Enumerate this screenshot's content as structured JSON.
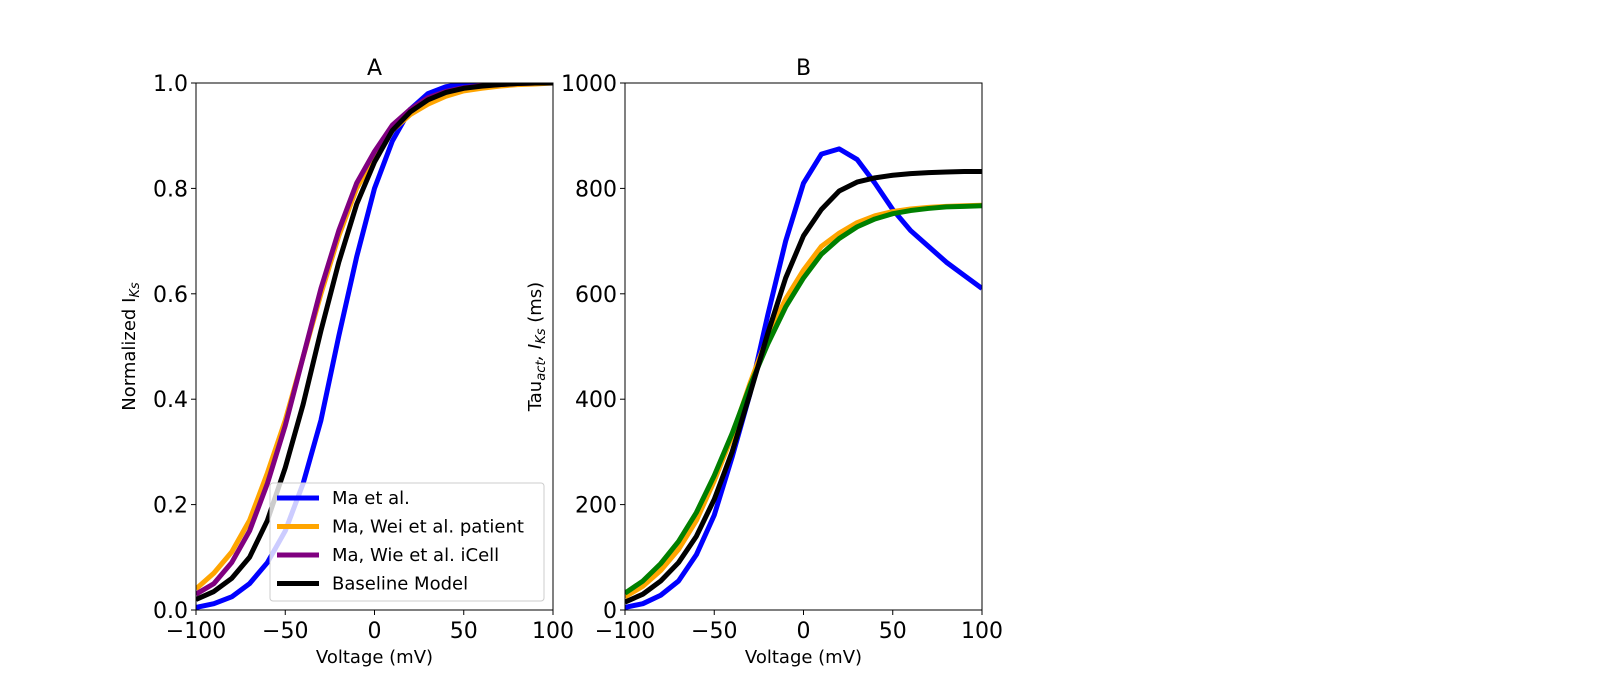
{
  "chart_data": [
    {
      "type": "line",
      "title": "A",
      "xlabel": "Voltage (mV)",
      "ylabel_main": "Normalized I",
      "ylabel_sub": "Ks",
      "xlim": [
        -100,
        100
      ],
      "ylim": [
        0,
        1
      ],
      "xticks": [
        -100,
        -50,
        0,
        50,
        100
      ],
      "xtick_labels": [
        "−100",
        "−50",
        "0",
        "50",
        "100"
      ],
      "yticks": [
        0,
        0.2,
        0.4,
        0.6,
        0.8,
        1.0
      ],
      "ytick_labels": [
        "0.0",
        "0.2",
        "0.4",
        "0.6",
        "0.8",
        "1.0"
      ],
      "grid": false,
      "legend": {
        "placement": "lower-right"
      },
      "x": [
        -100,
        -90,
        -80,
        -70,
        -60,
        -50,
        -40,
        -30,
        -20,
        -10,
        0,
        10,
        20,
        30,
        40,
        50,
        60,
        70,
        80,
        90,
        100
      ],
      "series": [
        {
          "name": "Ma et al.",
          "color": "#0000ff",
          "values": [
            0.005,
            0.012,
            0.025,
            0.05,
            0.09,
            0.15,
            0.24,
            0.36,
            0.52,
            0.67,
            0.8,
            0.89,
            0.95,
            0.98,
            0.993,
            0.998,
            1.0,
            1.0,
            1.0,
            1.0,
            1.0
          ]
        },
        {
          "name": "Ma, Wei et al. patient",
          "color": "#ffa500",
          "values": [
            0.04,
            0.07,
            0.11,
            0.17,
            0.26,
            0.36,
            0.48,
            0.6,
            0.71,
            0.8,
            0.86,
            0.91,
            0.94,
            0.96,
            0.975,
            0.985,
            0.99,
            0.994,
            0.997,
            0.998,
            1.0
          ]
        },
        {
          "name": "Ma, Wie et al. iCell",
          "color": "#800080",
          "values": [
            0.03,
            0.05,
            0.09,
            0.15,
            0.24,
            0.35,
            0.48,
            0.61,
            0.72,
            0.81,
            0.87,
            0.92,
            0.95,
            0.972,
            0.984,
            0.991,
            0.995,
            0.997,
            0.999,
            1.0,
            1.0
          ]
        },
        {
          "name": "Baseline Model",
          "color": "#000000",
          "values": [
            0.02,
            0.035,
            0.06,
            0.1,
            0.17,
            0.27,
            0.39,
            0.53,
            0.66,
            0.77,
            0.85,
            0.91,
            0.945,
            0.968,
            0.982,
            0.99,
            0.994,
            0.997,
            0.999,
            1.0,
            1.0
          ]
        }
      ]
    },
    {
      "type": "line",
      "title": "B",
      "xlabel": "Voltage (mV)",
      "ylabel_main": "Tau",
      "ylabel_sub": "act",
      "ylabel_mid": ", I",
      "ylabel_sub2": "Ks",
      "ylabel_end": " (ms)",
      "xlim": [
        -100,
        100
      ],
      "ylim": [
        0,
        1000
      ],
      "xticks": [
        -100,
        -50,
        0,
        50,
        100
      ],
      "xtick_labels": [
        "−100",
        "−50",
        "0",
        "50",
        "100"
      ],
      "yticks": [
        0,
        200,
        400,
        600,
        800,
        1000
      ],
      "ytick_labels": [
        "0",
        "200",
        "400",
        "600",
        "800",
        "1000"
      ],
      "grid": false,
      "x": [
        -100,
        -90,
        -80,
        -70,
        -60,
        -50,
        -40,
        -30,
        -20,
        -10,
        0,
        10,
        20,
        30,
        40,
        50,
        60,
        70,
        80,
        90,
        100
      ],
      "series": [
        {
          "color": "#0000ff",
          "values": [
            5,
            12,
            28,
            55,
            105,
            180,
            290,
            410,
            560,
            700,
            810,
            865,
            875,
            855,
            810,
            760,
            720,
            690,
            660,
            635,
            610
          ]
        },
        {
          "color": "#ffa500",
          "values": [
            25,
            45,
            75,
            115,
            170,
            245,
            330,
            430,
            520,
            590,
            645,
            690,
            715,
            735,
            748,
            756,
            761,
            764,
            766,
            767,
            768
          ]
        },
        {
          "color": "#008000",
          "values": [
            32,
            55,
            88,
            130,
            185,
            255,
            335,
            425,
            505,
            575,
            630,
            675,
            705,
            727,
            742,
            752,
            758,
            762,
            765,
            766,
            767
          ]
        },
        {
          "color": "#000000",
          "values": [
            15,
            30,
            55,
            90,
            140,
            210,
            300,
            410,
            525,
            630,
            710,
            760,
            795,
            812,
            820,
            825,
            828,
            830,
            831,
            832,
            832
          ]
        }
      ]
    }
  ]
}
